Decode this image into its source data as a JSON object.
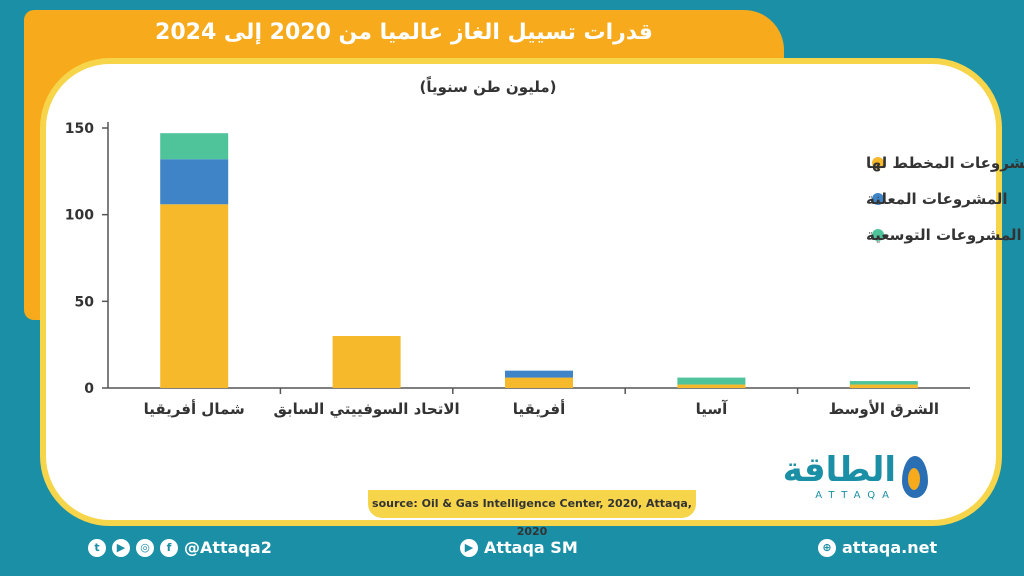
{
  "title": "قدرات تسييل الغاز عالميا من 2020 إلى 2024",
  "unit": "(مليون طن سنوياً)",
  "source": "source: Oil & Gas Intelligence Center, 2020, Attaqa, 2020",
  "logo": {
    "arabic": "الطاقة",
    "english": "ATTAQA"
  },
  "footer": {
    "left_handle": "@Attaqa2",
    "center": "Attaqa SM",
    "right": "attaqa.net"
  },
  "colors": {
    "planned": "#f6b92b",
    "announced": "#3f84c6",
    "expansion": "#4fc39a"
  },
  "chart_data": {
    "type": "bar",
    "stacked": true,
    "categories": [
      "شمال أفريقيا",
      "الاتحاد السوفييتي السابق",
      "أفريقيا",
      "آسيا",
      "الشرق الأوسط"
    ],
    "series": [
      {
        "name": "المشروعات المخطط لها",
        "values": [
          106,
          30,
          6,
          2,
          2
        ]
      },
      {
        "name": "المشروعات المعلنة",
        "values": [
          26,
          0,
          4,
          0,
          0
        ]
      },
      {
        "name": "المشروعات التوسعية",
        "values": [
          15,
          0,
          0,
          4,
          2
        ]
      }
    ],
    "ylim": [
      0,
      150
    ],
    "yticks": [
      0,
      50,
      100,
      150
    ],
    "ylabel": "(مليون طن سنوياً)",
    "legend": "top-right",
    "grid": false
  }
}
